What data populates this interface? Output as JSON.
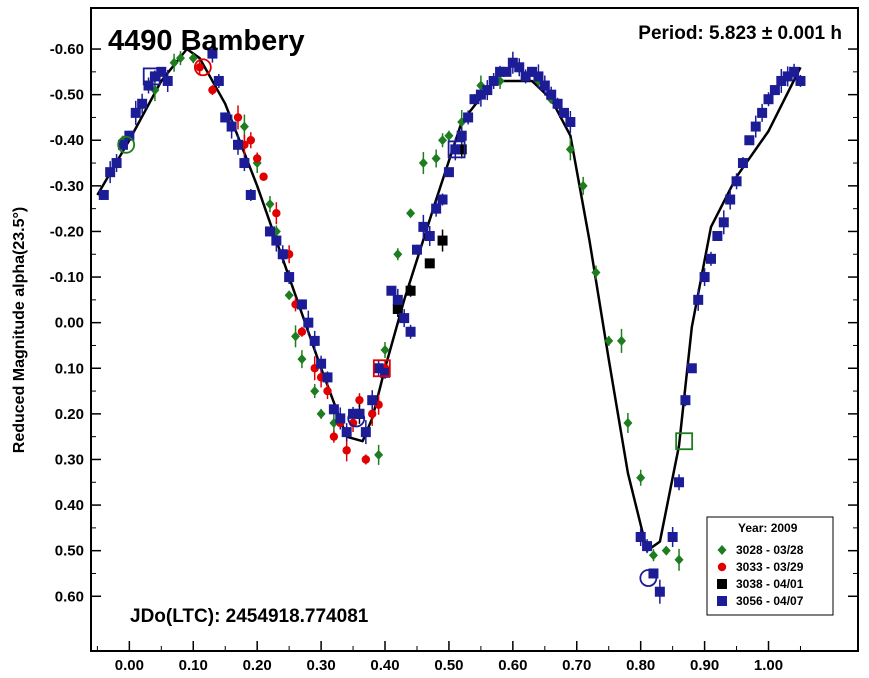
{
  "chart_data": {
    "type": "scatter",
    "title": "4490 Bambery",
    "period_label": "Period: 5.823 ± 0.001 h",
    "jdo_label": "JDo(LTC): 2454918.774081",
    "ylabel": "Reduced Magnitude alpha(23.5°)",
    "xlabel": "",
    "xlim": [
      -0.06,
      1.14
    ],
    "ylim": [
      -0.69,
      0.72
    ],
    "y_inverted": true,
    "grid": false,
    "legend_position": "bottom-right",
    "legend_title": "Year: 2009",
    "x_ticks": [
      {
        "v": 0.0,
        "label": "0.00"
      },
      {
        "v": 0.1,
        "label": "0.10"
      },
      {
        "v": 0.2,
        "label": "0.20"
      },
      {
        "v": 0.3,
        "label": "0.30"
      },
      {
        "v": 0.4,
        "label": "0.40"
      },
      {
        "v": 0.5,
        "label": "0.50"
      },
      {
        "v": 0.6,
        "label": "0.60"
      },
      {
        "v": 0.7,
        "label": "0.70"
      },
      {
        "v": 0.8,
        "label": "0.80"
      },
      {
        "v": 0.9,
        "label": "0.90"
      },
      {
        "v": 1.0,
        "label": "1.00"
      }
    ],
    "y_ticks": [
      {
        "v": -0.6,
        "label": "-0.60"
      },
      {
        "v": -0.5,
        "label": "-0.50"
      },
      {
        "v": -0.4,
        "label": "-0.40"
      },
      {
        "v": -0.3,
        "label": "-0.30"
      },
      {
        "v": -0.2,
        "label": "-0.20"
      },
      {
        "v": -0.1,
        "label": "-0.10"
      },
      {
        "v": 0.0,
        "label": "0.00"
      },
      {
        "v": 0.1,
        "label": "0.10"
      },
      {
        "v": 0.2,
        "label": "0.20"
      },
      {
        "v": 0.3,
        "label": "0.30"
      },
      {
        "v": 0.4,
        "label": "0.40"
      },
      {
        "v": 0.5,
        "label": "0.50"
      },
      {
        "v": 0.6,
        "label": "0.60"
      }
    ],
    "fit_curve": [
      [
        -0.05,
        -0.28
      ],
      [
        0.0,
        -0.4
      ],
      [
        0.05,
        -0.53
      ],
      [
        0.09,
        -0.6
      ],
      [
        0.11,
        -0.58
      ],
      [
        0.15,
        -0.48
      ],
      [
        0.2,
        -0.3
      ],
      [
        0.25,
        -0.1
      ],
      [
        0.3,
        0.1
      ],
      [
        0.34,
        0.25
      ],
      [
        0.365,
        0.26
      ],
      [
        0.38,
        0.21
      ],
      [
        0.4,
        0.1
      ],
      [
        0.43,
        -0.05
      ],
      [
        0.48,
        -0.27
      ],
      [
        0.52,
        -0.44
      ],
      [
        0.57,
        -0.53
      ],
      [
        0.63,
        -0.53
      ],
      [
        0.66,
        -0.49
      ],
      [
        0.69,
        -0.41
      ],
      [
        0.72,
        -0.18
      ],
      [
        0.75,
        0.08
      ],
      [
        0.78,
        0.33
      ],
      [
        0.81,
        0.5
      ],
      [
        0.83,
        0.48
      ],
      [
        0.86,
        0.27
      ],
      [
        0.88,
        0.01
      ],
      [
        0.91,
        -0.21
      ],
      [
        0.95,
        -0.32
      ],
      [
        1.0,
        -0.42
      ],
      [
        1.05,
        -0.56
      ]
    ],
    "series": [
      {
        "name": "3028 - 03/28",
        "color": "#1e7d1e",
        "marker": "diamond",
        "points": [
          [
            -0.01,
            -0.4
          ],
          [
            0.04,
            -0.51
          ],
          [
            0.07,
            -0.57
          ],
          [
            0.08,
            -0.58
          ],
          [
            0.1,
            -0.58
          ],
          [
            0.18,
            -0.43
          ],
          [
            0.2,
            -0.35
          ],
          [
            0.22,
            -0.26
          ],
          [
            0.23,
            -0.2
          ],
          [
            0.25,
            -0.06
          ],
          [
            0.26,
            0.03
          ],
          [
            0.27,
            0.08
          ],
          [
            0.29,
            0.15
          ],
          [
            0.3,
            0.2
          ],
          [
            0.32,
            0.22
          ],
          [
            0.39,
            0.29
          ],
          [
            0.4,
            0.06
          ],
          [
            0.42,
            -0.15
          ],
          [
            0.44,
            -0.24
          ],
          [
            0.46,
            -0.35
          ],
          [
            0.48,
            -0.36
          ],
          [
            0.49,
            -0.4
          ],
          [
            0.5,
            -0.41
          ],
          [
            0.52,
            -0.44
          ],
          [
            0.55,
            -0.52
          ],
          [
            0.58,
            -0.53
          ],
          [
            0.64,
            -0.53
          ],
          [
            0.66,
            -0.49
          ],
          [
            0.69,
            -0.38
          ],
          [
            0.71,
            -0.3
          ],
          [
            0.73,
            -0.11
          ],
          [
            0.75,
            0.04
          ],
          [
            0.77,
            0.04
          ],
          [
            0.78,
            0.22
          ],
          [
            0.8,
            0.34
          ],
          [
            0.82,
            0.51
          ],
          [
            0.84,
            0.5
          ],
          [
            0.86,
            0.52
          ]
        ]
      },
      {
        "name": "3033 - 03/29",
        "color": "#e00000",
        "marker": "circle",
        "points": [
          [
            0.11,
            -0.56
          ],
          [
            0.13,
            -0.51
          ],
          [
            0.17,
            -0.45
          ],
          [
            0.18,
            -0.39
          ],
          [
            0.19,
            -0.4
          ],
          [
            0.2,
            -0.36
          ],
          [
            0.21,
            -0.32
          ],
          [
            0.23,
            -0.24
          ],
          [
            0.25,
            -0.15
          ],
          [
            0.26,
            -0.04
          ],
          [
            0.27,
            0.02
          ],
          [
            0.29,
            0.1
          ],
          [
            0.3,
            0.12
          ],
          [
            0.31,
            0.15
          ],
          [
            0.32,
            0.25
          ],
          [
            0.33,
            0.22
          ],
          [
            0.34,
            0.28
          ],
          [
            0.35,
            0.22
          ],
          [
            0.36,
            0.17
          ],
          [
            0.37,
            0.3
          ],
          [
            0.38,
            0.2
          ],
          [
            0.39,
            0.18
          ],
          [
            0.4,
            0.1
          ]
        ]
      },
      {
        "name": "3038 - 04/01",
        "color": "#000000",
        "marker": "square",
        "points": [
          [
            0.36,
            0.2
          ],
          [
            0.42,
            -0.03
          ],
          [
            0.44,
            -0.07
          ],
          [
            0.47,
            -0.13
          ],
          [
            0.49,
            -0.18
          ],
          [
            0.52,
            -0.38
          ]
        ]
      },
      {
        "name": "3056 - 04/07",
        "color": "#1c1c96",
        "marker": "square",
        "points": [
          [
            -0.04,
            -0.28
          ],
          [
            -0.03,
            -0.33
          ],
          [
            -0.02,
            -0.35
          ],
          [
            -0.01,
            -0.39
          ],
          [
            0.0,
            -0.41
          ],
          [
            0.01,
            -0.46
          ],
          [
            0.02,
            -0.48
          ],
          [
            0.03,
            -0.52
          ],
          [
            0.04,
            -0.54
          ],
          [
            0.05,
            -0.55
          ],
          [
            0.06,
            -0.53
          ],
          [
            0.13,
            -0.59
          ],
          [
            0.14,
            -0.53
          ],
          [
            0.15,
            -0.45
          ],
          [
            0.16,
            -0.43
          ],
          [
            0.17,
            -0.39
          ],
          [
            0.18,
            -0.35
          ],
          [
            0.19,
            -0.28
          ],
          [
            0.22,
            -0.2
          ],
          [
            0.23,
            -0.18
          ],
          [
            0.24,
            -0.15
          ],
          [
            0.25,
            -0.1
          ],
          [
            0.27,
            -0.04
          ],
          [
            0.28,
            0.0
          ],
          [
            0.29,
            0.04
          ],
          [
            0.3,
            0.09
          ],
          [
            0.31,
            0.12
          ],
          [
            0.32,
            0.19
          ],
          [
            0.33,
            0.21
          ],
          [
            0.34,
            0.24
          ],
          [
            0.35,
            0.2
          ],
          [
            0.36,
            0.2
          ],
          [
            0.37,
            0.24
          ],
          [
            0.38,
            0.17
          ],
          [
            0.39,
            0.1
          ],
          [
            0.4,
            0.11
          ],
          [
            0.41,
            -0.07
          ],
          [
            0.42,
            -0.05
          ],
          [
            0.43,
            -0.01
          ],
          [
            0.44,
            0.02
          ],
          [
            0.45,
            -0.16
          ],
          [
            0.46,
            -0.21
          ],
          [
            0.47,
            -0.19
          ],
          [
            0.48,
            -0.25
          ],
          [
            0.49,
            -0.27
          ],
          [
            0.5,
            -0.33
          ],
          [
            0.51,
            -0.38
          ],
          [
            0.52,
            -0.41
          ],
          [
            0.53,
            -0.45
          ],
          [
            0.54,
            -0.49
          ],
          [
            0.55,
            -0.5
          ],
          [
            0.56,
            -0.51
          ],
          [
            0.57,
            -0.53
          ],
          [
            0.58,
            -0.55
          ],
          [
            0.59,
            -0.55
          ],
          [
            0.6,
            -0.57
          ],
          [
            0.61,
            -0.56
          ],
          [
            0.62,
            -0.54
          ],
          [
            0.63,
            -0.55
          ],
          [
            0.64,
            -0.54
          ],
          [
            0.65,
            -0.52
          ],
          [
            0.66,
            -0.5
          ],
          [
            0.67,
            -0.48
          ],
          [
            0.68,
            -0.46
          ],
          [
            0.69,
            -0.44
          ],
          [
            0.8,
            0.47
          ],
          [
            0.81,
            0.49
          ],
          [
            0.82,
            0.55
          ],
          [
            0.83,
            0.59
          ],
          [
            0.85,
            0.47
          ],
          [
            0.86,
            0.35
          ],
          [
            0.87,
            0.17
          ],
          [
            0.88,
            0.1
          ],
          [
            0.89,
            -0.05
          ],
          [
            0.9,
            -0.1
          ],
          [
            0.91,
            -0.14
          ],
          [
            0.92,
            -0.19
          ],
          [
            0.93,
            -0.22
          ],
          [
            0.94,
            -0.27
          ],
          [
            0.95,
            -0.31
          ],
          [
            0.96,
            -0.35
          ],
          [
            0.97,
            -0.4
          ],
          [
            0.98,
            -0.43
          ],
          [
            0.99,
            -0.46
          ],
          [
            1.0,
            -0.49
          ],
          [
            1.01,
            -0.51
          ],
          [
            1.02,
            -0.53
          ],
          [
            1.03,
            -0.54
          ],
          [
            1.04,
            -0.55
          ],
          [
            1.05,
            -0.53
          ]
        ]
      }
    ],
    "highlighted_points": [
      {
        "x": -0.005,
        "y": -0.39,
        "shape": "circle",
        "color": "#1e7d1e"
      },
      {
        "x": 0.115,
        "y": -0.56,
        "shape": "circle",
        "color": "#e00000"
      },
      {
        "x": 0.035,
        "y": -0.54,
        "shape": "square",
        "color": "#1c1c96"
      },
      {
        "x": 0.512,
        "y": -0.38,
        "shape": "square",
        "color": "#1c1c96"
      },
      {
        "x": 0.355,
        "y": 0.21,
        "shape": "circle",
        "color": "#1c1c96"
      },
      {
        "x": 0.395,
        "y": 0.1,
        "shape": "square",
        "color": "#e00000"
      },
      {
        "x": 0.812,
        "y": 0.56,
        "shape": "circle",
        "color": "#1c1c96"
      },
      {
        "x": 0.868,
        "y": 0.26,
        "shape": "square",
        "color": "#1e7d1e"
      }
    ]
  }
}
